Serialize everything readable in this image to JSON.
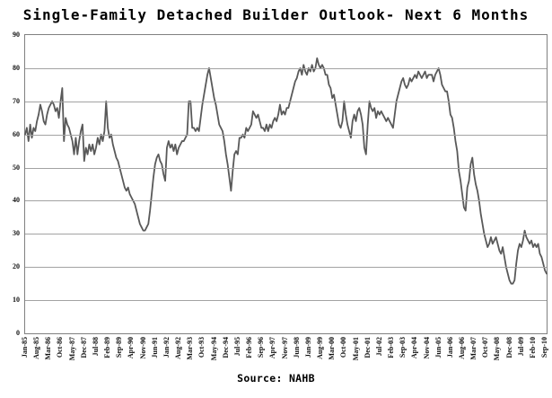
{
  "title": "Single-Family Detached Builder Outlook- Next 6 Months",
  "source_label": "Source: NAHB",
  "colors": {
    "line": "#595959",
    "grid": "#a3a3a3",
    "frame": "#808080",
    "text": "#000000"
  },
  "chart_data": {
    "type": "line",
    "title": "Single-Family Detached Builder Outlook- Next 6 Months",
    "xlabel": "",
    "ylabel": "",
    "frequency": "monthly",
    "x_start": "Jan-85",
    "x_end": "Oct-10",
    "ylim": [
      0,
      90
    ],
    "y_ticks": [
      0,
      10,
      20,
      30,
      40,
      50,
      60,
      70,
      80,
      90
    ],
    "grid": "horizontal",
    "legend": "none",
    "x_tick_labels": [
      "Jan-85",
      "Aug-85",
      "Mar-86",
      "Oct-86",
      "May-87",
      "Dec-87",
      "Jul-88",
      "Feb-89",
      "Sep-89",
      "Apr-90",
      "Nov-90",
      "Jun-91",
      "Jan-92",
      "Aug-92",
      "Mar-93",
      "Oct-93",
      "May-94",
      "Dec-94",
      "Jul-95",
      "Feb-96",
      "Sep-96",
      "Apr-97",
      "Nov-97",
      "Jun-98",
      "Jan-99",
      "Aug-99",
      "Mar-00",
      "Oct-00",
      "May-01",
      "Dec-01",
      "Jul-02",
      "Feb-03",
      "Sep-03",
      "Apr-04",
      "Nov-04",
      "Jun-05",
      "Jan-06",
      "Aug-06",
      "Mar-07",
      "Oct-07",
      "May-08",
      "Dec-08",
      "Jul-09",
      "Feb-10",
      "Sep-10"
    ],
    "x_tick_month_step": 7,
    "values": [
      60,
      62,
      58,
      63,
      59,
      62,
      61,
      64,
      66,
      69,
      67,
      64,
      63,
      66,
      68,
      69,
      70,
      69,
      67,
      68,
      65,
      70,
      74,
      58,
      65,
      63,
      62,
      60,
      58,
      54,
      59,
      54,
      58,
      61,
      63,
      52,
      56,
      54,
      57,
      55,
      57,
      54,
      56,
      59,
      57,
      60,
      58,
      61,
      70,
      62,
      59,
      60,
      57,
      55,
      53,
      52,
      50,
      48,
      46,
      44,
      43,
      44,
      42,
      41,
      40,
      39,
      37,
      35,
      33,
      32,
      31,
      31,
      32,
      33,
      37,
      42,
      47,
      51,
      53,
      54,
      52,
      51,
      48,
      46,
      56,
      58,
      56,
      57,
      55,
      57,
      54,
      56,
      57,
      58,
      58,
      59,
      60,
      70,
      70,
      62,
      62,
      61,
      62,
      61,
      65,
      69,
      72,
      75,
      78,
      80,
      77,
      74,
      71,
      69,
      66,
      63,
      62,
      61,
      58,
      54,
      51,
      47,
      43,
      49,
      54,
      55,
      54,
      59,
      59,
      60,
      59,
      62,
      61,
      62,
      63,
      67,
      66,
      65,
      66,
      64,
      62,
      62,
      61,
      63,
      61,
      63,
      62,
      64,
      65,
      64,
      66,
      69,
      66,
      67,
      66,
      68,
      68,
      70,
      72,
      74,
      76,
      77,
      79,
      80,
      78,
      81,
      79,
      78,
      80,
      79,
      81,
      79,
      80,
      83,
      81,
      80,
      81,
      80,
      78,
      78,
      75,
      74,
      71,
      72,
      69,
      66,
      63,
      62,
      64,
      70,
      66,
      63,
      61,
      59,
      64,
      66,
      64,
      67,
      68,
      66,
      63,
      56,
      54,
      63,
      70,
      68,
      67,
      68,
      65,
      67,
      66,
      67,
      66,
      65,
      64,
      65,
      64,
      63,
      62,
      66,
      70,
      72,
      74,
      76,
      77,
      75,
      74,
      75,
      77,
      76,
      77,
      78,
      77,
      79,
      78,
      77,
      78,
      79,
      77,
      78,
      78,
      78,
      76,
      78,
      79,
      80,
      78,
      75,
      74,
      73,
      73,
      70,
      66,
      65,
      62,
      58,
      55,
      49,
      46,
      42,
      38,
      37,
      44,
      46,
      51,
      53,
      48,
      45,
      43,
      40,
      36,
      33,
      30,
      28,
      26,
      27,
      29,
      27,
      28,
      29,
      27,
      25,
      24,
      26,
      23,
      20,
      18,
      16,
      15,
      15,
      16,
      21,
      25,
      27,
      26,
      28,
      31,
      29,
      28,
      27,
      28,
      26,
      27,
      26,
      27,
      24,
      23,
      21,
      19,
      18
    ]
  }
}
